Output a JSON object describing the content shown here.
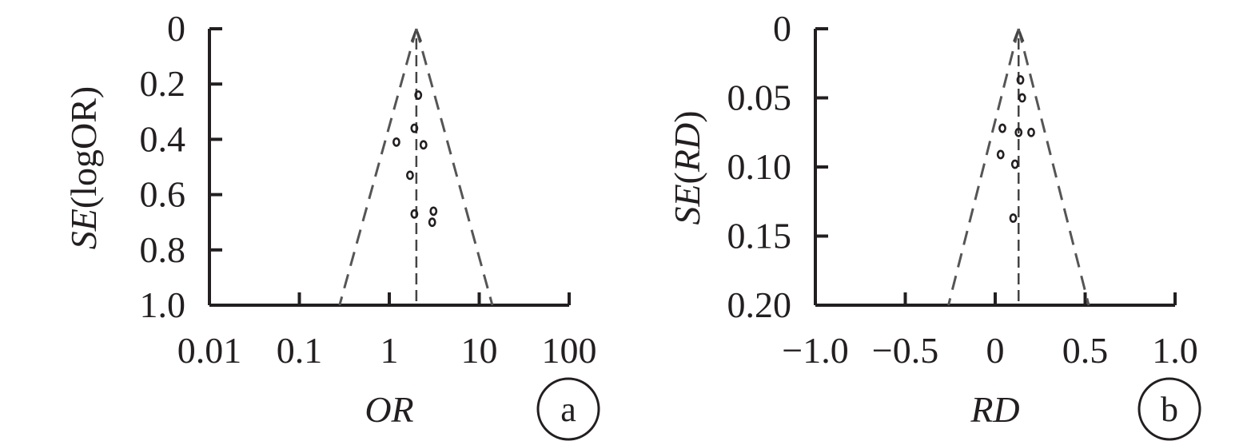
{
  "chart_data": [
    {
      "type": "scatter",
      "panel_label": "a",
      "xlabel": "OR",
      "ylabel": {
        "se": "SE",
        "paren_open": "(",
        "arg": "logOR",
        "paren_close": ")"
      },
      "x_scale": "log",
      "xlim": [
        0.01,
        100
      ],
      "x_ticks": [
        {
          "value": 0.01,
          "label": "0.01"
        },
        {
          "value": 0.1,
          "label": "0.1"
        },
        {
          "value": 1,
          "label": "1"
        },
        {
          "value": 10,
          "label": "10"
        },
        {
          "value": 100,
          "label": "100"
        }
      ],
      "ylim": [
        0,
        1.0
      ],
      "y_inverted": true,
      "y_ticks": [
        {
          "value": 0,
          "label": "0"
        },
        {
          "value": 0.2,
          "label": "0.2"
        },
        {
          "value": 0.4,
          "label": "0.4"
        },
        {
          "value": 0.6,
          "label": "0.6"
        },
        {
          "value": 0.8,
          "label": "0.8"
        },
        {
          "value": 1.0,
          "label": "1.0"
        }
      ],
      "pooled_estimate": 2.0,
      "funnel_at_max_se": [
        0.28,
        14.0
      ],
      "points": [
        {
          "x": 2.1,
          "y": 0.24
        },
        {
          "x": 1.9,
          "y": 0.36
        },
        {
          "x": 1.2,
          "y": 0.41
        },
        {
          "x": 2.4,
          "y": 0.42
        },
        {
          "x": 1.7,
          "y": 0.53
        },
        {
          "x": 1.9,
          "y": 0.67
        },
        {
          "x": 3.1,
          "y": 0.66
        },
        {
          "x": 3.0,
          "y": 0.7
        }
      ]
    },
    {
      "type": "scatter",
      "panel_label": "b",
      "xlabel": "RD",
      "ylabel": {
        "se": "SE",
        "paren_open": "(",
        "arg": "RD",
        "paren_close": ")"
      },
      "x_scale": "linear",
      "xlim": [
        -1.0,
        1.0
      ],
      "x_ticks": [
        {
          "value": -1.0,
          "label": "−1.0"
        },
        {
          "value": -0.5,
          "label": "−0.5"
        },
        {
          "value": 0,
          "label": "0"
        },
        {
          "value": 0.5,
          "label": "0.5"
        },
        {
          "value": 1.0,
          "label": "1.0"
        }
      ],
      "ylim": [
        0,
        0.2
      ],
      "y_inverted": true,
      "y_ticks": [
        {
          "value": 0,
          "label": "0"
        },
        {
          "value": 0.05,
          "label": "0.05"
        },
        {
          "value": 0.1,
          "label": "0.10"
        },
        {
          "value": 0.15,
          "label": "0.15"
        },
        {
          "value": 0.2,
          "label": "0.20"
        }
      ],
      "pooled_estimate": 0.13,
      "funnel_at_max_se": [
        -0.26,
        0.52
      ],
      "points": [
        {
          "x": 0.14,
          "y": 0.037
        },
        {
          "x": 0.15,
          "y": 0.05
        },
        {
          "x": 0.04,
          "y": 0.072
        },
        {
          "x": 0.13,
          "y": 0.075
        },
        {
          "x": 0.2,
          "y": 0.075
        },
        {
          "x": 0.03,
          "y": 0.091
        },
        {
          "x": 0.11,
          "y": 0.098
        },
        {
          "x": 0.1,
          "y": 0.137
        }
      ]
    }
  ]
}
